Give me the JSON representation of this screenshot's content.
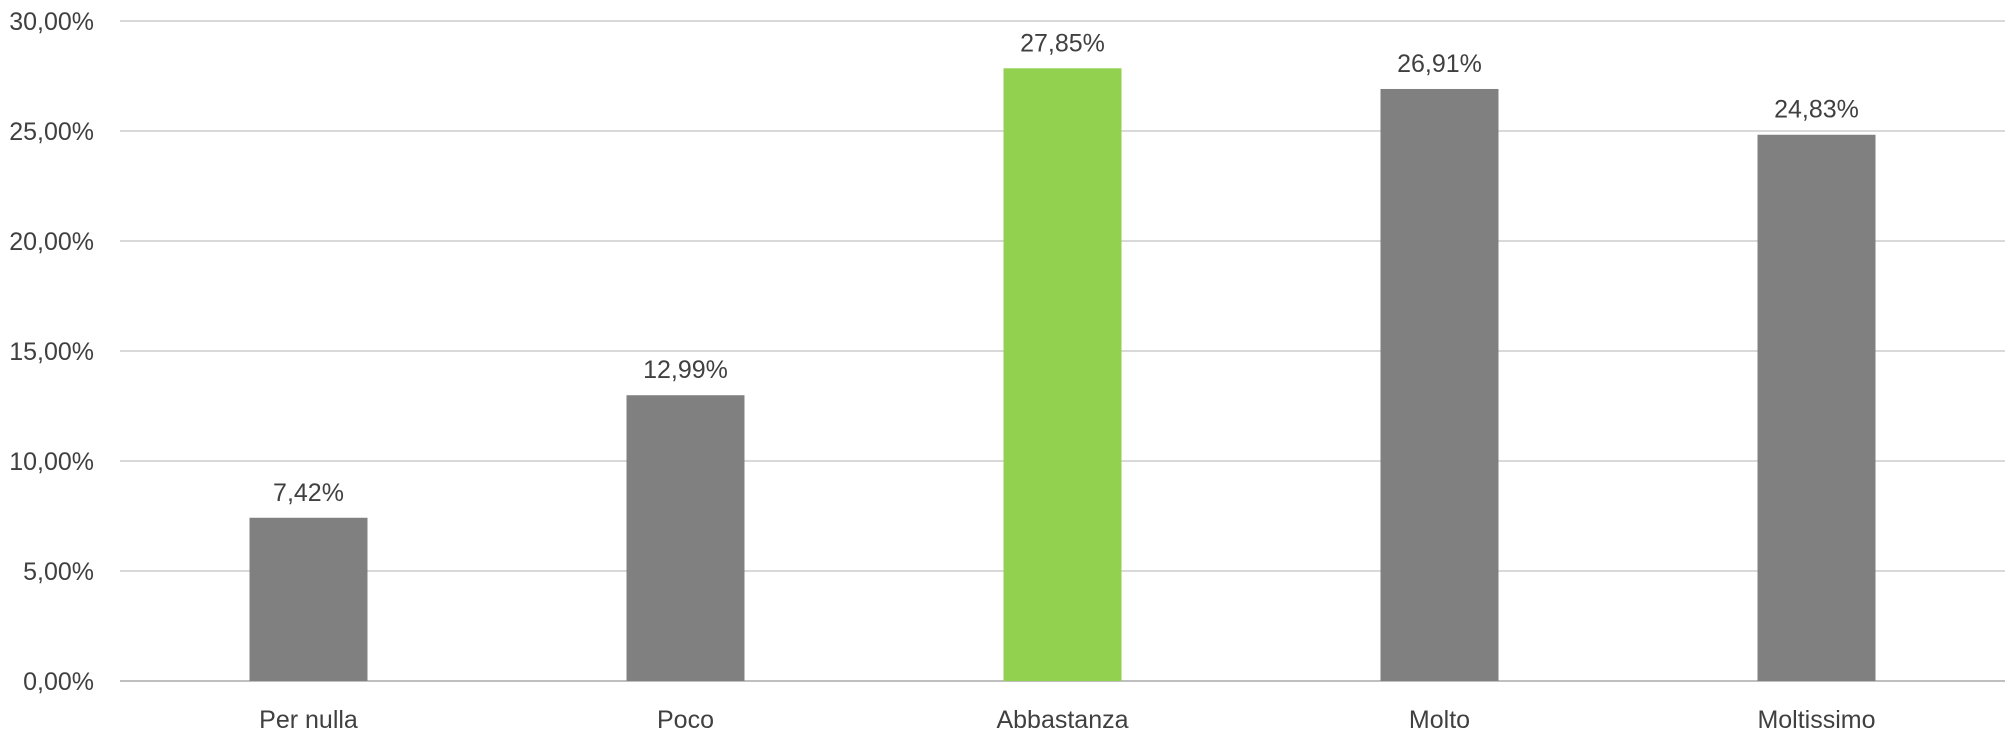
{
  "chart_data": {
    "type": "bar",
    "title": "",
    "xlabel": "",
    "ylabel": "",
    "categories": [
      "Per nulla",
      "Poco",
      "Abbastanza",
      "Molto",
      "Moltissimo"
    ],
    "values": [
      7.42,
      12.99,
      27.85,
      26.91,
      24.83
    ],
    "value_labels": [
      "7,42%",
      "12,99%",
      "27,85%",
      "26,91%",
      "24,83%"
    ],
    "ylim": [
      0,
      30
    ],
    "y_ticks": [
      0,
      5,
      10,
      15,
      20,
      25,
      30
    ],
    "y_tick_labels": [
      "0,00%",
      "5,00%",
      "10,00%",
      "15,00%",
      "20,00%",
      "25,00%",
      "30,00%"
    ],
    "grid": true,
    "legend": "none",
    "colors": {
      "default_bar": "#808080",
      "highlight_bar": "#92d050",
      "grid": "#d9d9d9",
      "text": "#404040"
    },
    "highlight_index": 2
  }
}
